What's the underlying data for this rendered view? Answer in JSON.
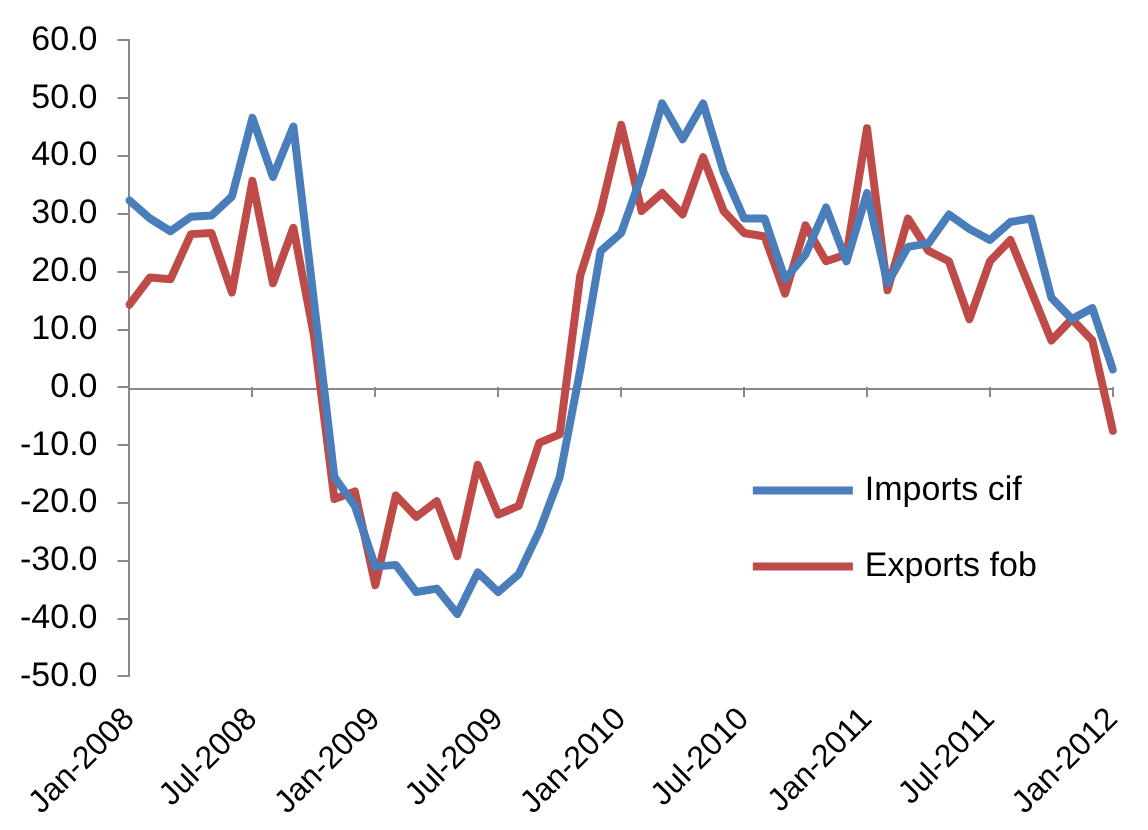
{
  "chart_data": {
    "type": "line",
    "categories": [
      "Jan-2008",
      null,
      null,
      null,
      null,
      null,
      "Jul-2008",
      null,
      null,
      null,
      null,
      null,
      "Jan-2009",
      null,
      null,
      null,
      null,
      null,
      "Jul-2009",
      null,
      null,
      null,
      null,
      null,
      "Jan-2010",
      null,
      null,
      null,
      null,
      null,
      "Jul-2010",
      null,
      null,
      null,
      null,
      null,
      "Jan-2011",
      null,
      null,
      null,
      null,
      null,
      "Jul-2011",
      null,
      null,
      null,
      null,
      null,
      "Jan-2012"
    ],
    "series": [
      {
        "name": "Imports cif",
        "color": "#4a7ebb",
        "values": [
          32.3,
          29.2,
          27,
          29.5,
          29.7,
          33,
          46.6,
          36.4,
          45.1,
          15,
          -15.5,
          -20.5,
          -31,
          -30.7,
          -35.4,
          -34.8,
          -39.2,
          -32,
          -35.4,
          -32.3,
          -24.9,
          -15.5,
          3,
          23.6,
          26.7,
          36.7,
          49.1,
          42.9,
          49.1,
          37.3,
          29.2,
          29.2,
          18.7,
          23,
          31.1,
          21.8,
          33.6,
          18,
          24.3,
          24.9,
          29.9,
          27.4,
          25.5,
          28.6,
          29.2,
          15.5,
          11.8,
          13.7,
          3.1
        ]
      },
      {
        "name": "Exports fob",
        "color": "#be4b48",
        "values": [
          14.3,
          19,
          18.7,
          26.5,
          26.7,
          16.4,
          35.7,
          18,
          27.6,
          9,
          -19.3,
          -18,
          -34.2,
          -18.7,
          -22.4,
          -19.7,
          -29.2,
          -13.4,
          -22,
          -20.5,
          -9.6,
          -8.1,
          19.3,
          30.5,
          45.4,
          30.5,
          33.6,
          29.9,
          39.8,
          30.5,
          26.7,
          26.1,
          16.2,
          28,
          21.8,
          23,
          44.8,
          16.8,
          29.2,
          23.6,
          21.8,
          11.8,
          21.8,
          25.5,
          16.8,
          8.1,
          11.8,
          8.1,
          -7.5
        ]
      }
    ],
    "ylim": [
      -50,
      60
    ],
    "yticks": [
      {
        "value": -50,
        "label": "-50.0"
      },
      {
        "value": -40,
        "label": "-40.0"
      },
      {
        "value": -30,
        "label": "-30.0"
      },
      {
        "value": -20,
        "label": "-20.0"
      },
      {
        "value": -10,
        "label": "-10.0"
      },
      {
        "value": 0,
        "label": "0.0"
      },
      {
        "value": 10,
        "label": "10.0"
      },
      {
        "value": 20,
        "label": "20.0"
      },
      {
        "value": 30,
        "label": "30.0"
      },
      {
        "value": 40,
        "label": "40.0"
      },
      {
        "value": 50,
        "label": "50.0"
      },
      {
        "value": 60,
        "label": "60.0"
      }
    ],
    "ref_lines": [
      {
        "axis": "y",
        "value": 0,
        "color": "#898989",
        "line_style": "solid"
      }
    ],
    "grid": false,
    "legend": "bottom right",
    "marker": "none",
    "line_style": "solid"
  }
}
